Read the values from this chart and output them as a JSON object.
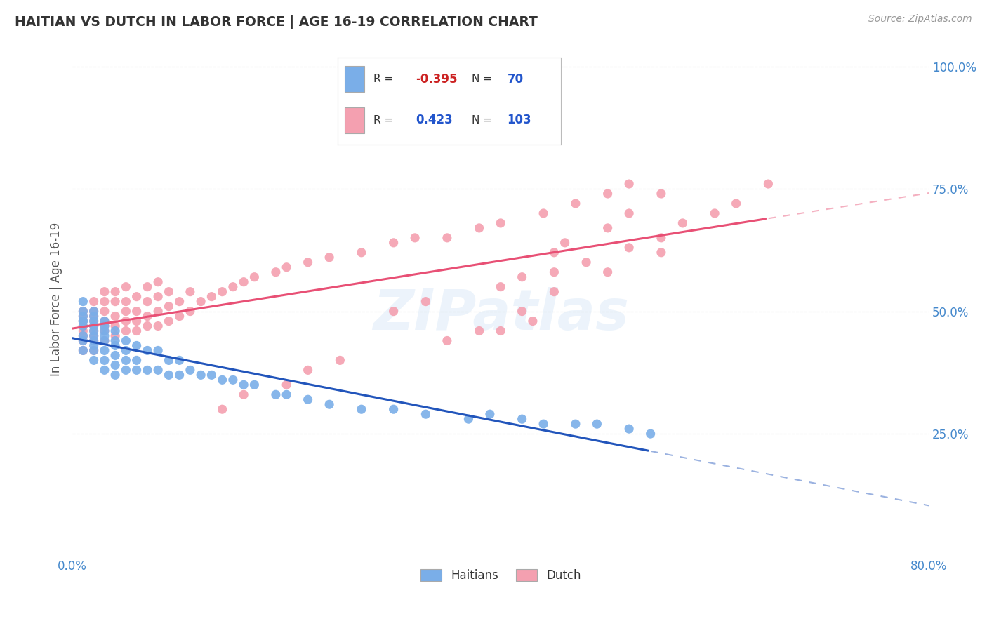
{
  "title": "HAITIAN VS DUTCH IN LABOR FORCE | AGE 16-19 CORRELATION CHART",
  "source_text": "Source: ZipAtlas.com",
  "ylabel": "In Labor Force | Age 16-19",
  "xlim": [
    0.0,
    0.8
  ],
  "ylim": [
    0.0,
    1.05
  ],
  "grid_color": "#cccccc",
  "background_color": "#ffffff",
  "haitian_color": "#7aaee8",
  "dutch_color": "#f4a0b0",
  "haitian_line_color": "#2255bb",
  "dutch_line_color": "#e85075",
  "haitian_R": -0.395,
  "haitian_N": 70,
  "dutch_R": 0.423,
  "dutch_N": 103,
  "watermark_text": "ZIPatlas",
  "haitian_scatter_x": [
    0.01,
    0.01,
    0.01,
    0.01,
    0.01,
    0.01,
    0.01,
    0.01,
    0.01,
    0.02,
    0.02,
    0.02,
    0.02,
    0.02,
    0.02,
    0.02,
    0.02,
    0.02,
    0.02,
    0.03,
    0.03,
    0.03,
    0.03,
    0.03,
    0.03,
    0.03,
    0.03,
    0.04,
    0.04,
    0.04,
    0.04,
    0.04,
    0.04,
    0.05,
    0.05,
    0.05,
    0.05,
    0.06,
    0.06,
    0.06,
    0.07,
    0.07,
    0.08,
    0.08,
    0.09,
    0.09,
    0.1,
    0.1,
    0.11,
    0.12,
    0.13,
    0.14,
    0.15,
    0.16,
    0.17,
    0.19,
    0.2,
    0.22,
    0.24,
    0.27,
    0.3,
    0.33,
    0.37,
    0.39,
    0.42,
    0.44,
    0.47,
    0.49,
    0.52,
    0.54
  ],
  "haitian_scatter_y": [
    0.42,
    0.44,
    0.45,
    0.47,
    0.48,
    0.48,
    0.49,
    0.5,
    0.52,
    0.4,
    0.42,
    0.43,
    0.44,
    0.45,
    0.46,
    0.47,
    0.48,
    0.49,
    0.5,
    0.38,
    0.4,
    0.42,
    0.44,
    0.45,
    0.46,
    0.47,
    0.48,
    0.37,
    0.39,
    0.41,
    0.43,
    0.44,
    0.46,
    0.38,
    0.4,
    0.42,
    0.44,
    0.38,
    0.4,
    0.43,
    0.38,
    0.42,
    0.38,
    0.42,
    0.37,
    0.4,
    0.37,
    0.4,
    0.38,
    0.37,
    0.37,
    0.36,
    0.36,
    0.35,
    0.35,
    0.33,
    0.33,
    0.32,
    0.31,
    0.3,
    0.3,
    0.29,
    0.28,
    0.29,
    0.28,
    0.27,
    0.27,
    0.27,
    0.26,
    0.25
  ],
  "dutch_scatter_x": [
    0.01,
    0.01,
    0.01,
    0.01,
    0.01,
    0.01,
    0.01,
    0.01,
    0.02,
    0.02,
    0.02,
    0.02,
    0.02,
    0.02,
    0.02,
    0.02,
    0.02,
    0.03,
    0.03,
    0.03,
    0.03,
    0.03,
    0.03,
    0.03,
    0.04,
    0.04,
    0.04,
    0.04,
    0.04,
    0.05,
    0.05,
    0.05,
    0.05,
    0.05,
    0.06,
    0.06,
    0.06,
    0.06,
    0.07,
    0.07,
    0.07,
    0.07,
    0.08,
    0.08,
    0.08,
    0.08,
    0.09,
    0.09,
    0.09,
    0.1,
    0.1,
    0.11,
    0.11,
    0.12,
    0.13,
    0.14,
    0.15,
    0.16,
    0.17,
    0.19,
    0.2,
    0.22,
    0.24,
    0.27,
    0.3,
    0.32,
    0.35,
    0.38,
    0.4,
    0.44,
    0.47,
    0.5,
    0.52,
    0.3,
    0.33,
    0.4,
    0.42,
    0.45,
    0.48,
    0.52,
    0.55,
    0.57,
    0.6,
    0.62,
    0.65,
    0.4,
    0.43,
    0.2,
    0.22,
    0.25,
    0.14,
    0.16,
    0.45,
    0.46,
    0.5,
    0.52,
    0.55,
    0.35,
    0.38,
    0.42,
    0.45,
    0.5,
    0.55
  ],
  "dutch_scatter_y": [
    0.42,
    0.44,
    0.45,
    0.46,
    0.47,
    0.48,
    0.49,
    0.5,
    0.42,
    0.44,
    0.45,
    0.46,
    0.47,
    0.48,
    0.49,
    0.5,
    0.52,
    0.44,
    0.46,
    0.47,
    0.48,
    0.5,
    0.52,
    0.54,
    0.45,
    0.47,
    0.49,
    0.52,
    0.54,
    0.46,
    0.48,
    0.5,
    0.52,
    0.55,
    0.46,
    0.48,
    0.5,
    0.53,
    0.47,
    0.49,
    0.52,
    0.55,
    0.47,
    0.5,
    0.53,
    0.56,
    0.48,
    0.51,
    0.54,
    0.49,
    0.52,
    0.5,
    0.54,
    0.52,
    0.53,
    0.54,
    0.55,
    0.56,
    0.57,
    0.58,
    0.59,
    0.6,
    0.61,
    0.62,
    0.64,
    0.65,
    0.65,
    0.67,
    0.68,
    0.7,
    0.72,
    0.74,
    0.76,
    0.5,
    0.52,
    0.55,
    0.57,
    0.58,
    0.6,
    0.63,
    0.65,
    0.68,
    0.7,
    0.72,
    0.76,
    0.46,
    0.48,
    0.35,
    0.38,
    0.4,
    0.3,
    0.33,
    0.62,
    0.64,
    0.67,
    0.7,
    0.74,
    0.44,
    0.46,
    0.5,
    0.54,
    0.58,
    0.62
  ],
  "haitian_line_x_solid_end": 0.54,
  "dutch_line_x_solid_end": 0.65,
  "line_x_end": 0.8
}
